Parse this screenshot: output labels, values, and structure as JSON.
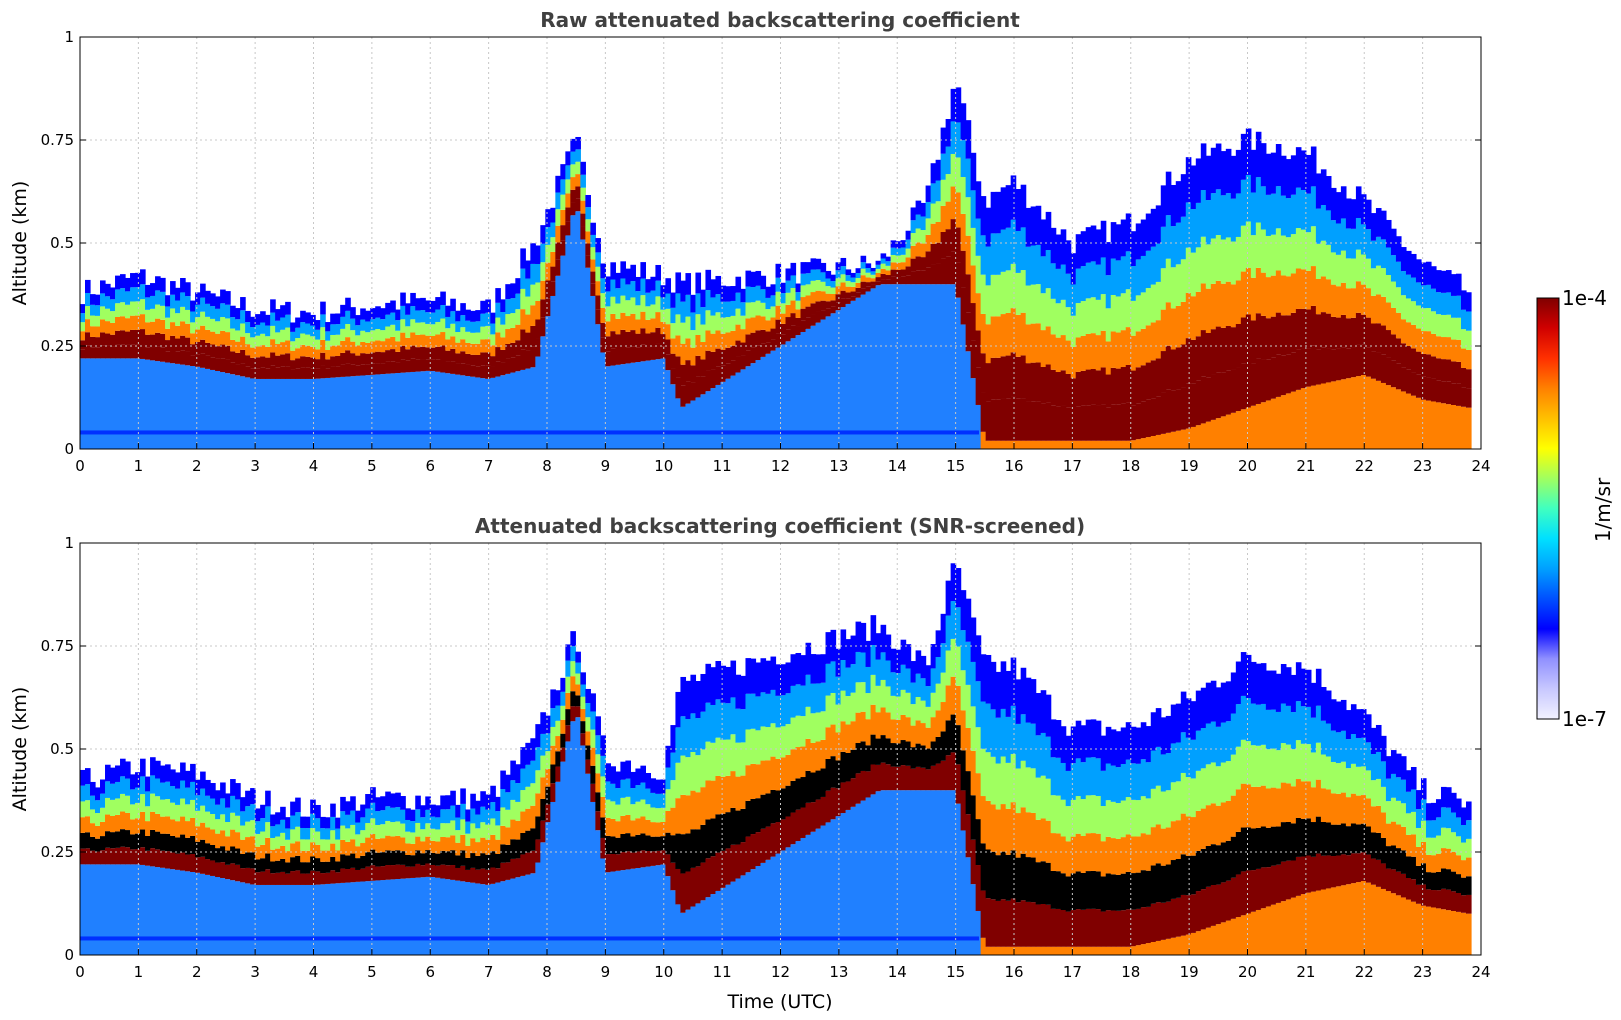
{
  "chart_data": [
    {
      "type": "heatmap",
      "title": "Raw attenuated backscattering coefficient",
      "xlabel": "",
      "ylabel": "Altitude (km)",
      "xlim": [
        0,
        24
      ],
      "ylim": [
        0,
        1
      ],
      "xticks": [
        "0",
        "1",
        "2",
        "3",
        "4",
        "5",
        "6",
        "7",
        "8",
        "9",
        "10",
        "11",
        "12",
        "13",
        "14",
        "15",
        "16",
        "17",
        "18",
        "19",
        "20",
        "21",
        "22",
        "23",
        "24"
      ],
      "yticks": [
        "0",
        "0.25",
        "0.5",
        "0.75",
        "1"
      ],
      "screened": false,
      "layer_profile": {
        "time_utc": [
          0,
          1,
          2,
          3,
          4,
          5,
          6,
          7,
          7.8,
          8.5,
          9,
          10,
          10.3,
          13.7,
          14.5,
          15,
          15.5,
          16,
          17,
          18,
          19,
          20,
          21,
          22,
          23,
          23.8
        ],
        "top_km": [
          0.38,
          0.42,
          0.38,
          0.34,
          0.33,
          0.35,
          0.36,
          0.34,
          0.5,
          0.75,
          0.45,
          0.42,
          0.4,
          0.45,
          0.6,
          0.9,
          0.6,
          0.65,
          0.5,
          0.55,
          0.7,
          0.75,
          0.72,
          0.6,
          0.45,
          0.38
        ],
        "base_km": [
          0.22,
          0.22,
          0.2,
          0.17,
          0.17,
          0.18,
          0.19,
          0.17,
          0.2,
          0.6,
          0.2,
          0.22,
          0.1,
          0.4,
          0.4,
          0.4,
          0.02,
          0.02,
          0.02,
          0.02,
          0.05,
          0.1,
          0.15,
          0.18,
          0.12,
          0.1
        ]
      }
    },
    {
      "type": "heatmap",
      "title": "Attenuated backscattering coefficient (SNR-screened)",
      "xlabel": "Time (UTC)",
      "ylabel": "Altitude (km)",
      "xlim": [
        0,
        24
      ],
      "ylim": [
        0,
        1
      ],
      "xticks": [
        "0",
        "1",
        "2",
        "3",
        "4",
        "5",
        "6",
        "7",
        "8",
        "9",
        "10",
        "11",
        "12",
        "13",
        "14",
        "15",
        "16",
        "17",
        "18",
        "19",
        "20",
        "21",
        "22",
        "23",
        "24"
      ],
      "yticks": [
        "0",
        "0.25",
        "0.5",
        "0.75",
        "1"
      ],
      "screened": true,
      "layer_profile": {
        "time_utc": [
          0,
          1,
          2,
          3,
          4,
          5,
          6,
          7,
          7.8,
          8.5,
          9,
          10,
          10.3,
          13.7,
          14.5,
          15,
          15.5,
          16,
          17,
          18,
          19,
          20,
          21,
          22,
          23,
          23.8
        ],
        "top_km": [
          0.42,
          0.46,
          0.44,
          0.38,
          0.35,
          0.38,
          0.38,
          0.38,
          0.52,
          0.78,
          0.48,
          0.45,
          0.66,
          0.8,
          0.7,
          0.95,
          0.7,
          0.7,
          0.55,
          0.55,
          0.62,
          0.72,
          0.7,
          0.58,
          0.4,
          0.37
        ],
        "base_km": [
          0.22,
          0.22,
          0.2,
          0.17,
          0.17,
          0.18,
          0.19,
          0.17,
          0.2,
          0.6,
          0.2,
          0.22,
          0.1,
          0.4,
          0.4,
          0.4,
          0.02,
          0.02,
          0.02,
          0.02,
          0.05,
          0.1,
          0.15,
          0.18,
          0.12,
          0.1
        ]
      }
    }
  ],
  "colorbar": {
    "label": "1/m/sr",
    "min_label": "1e-7",
    "max_label": "1e-4",
    "colors": [
      "#f2f2ff",
      "#c8c8ff",
      "#9090ff",
      "#0000ff",
      "#0050ff",
      "#00a0ff",
      "#00e0ff",
      "#40ffc0",
      "#a0ff60",
      "#ffff00",
      "#ffc000",
      "#ff8000",
      "#ff3000",
      "#d00000",
      "#800000"
    ]
  }
}
